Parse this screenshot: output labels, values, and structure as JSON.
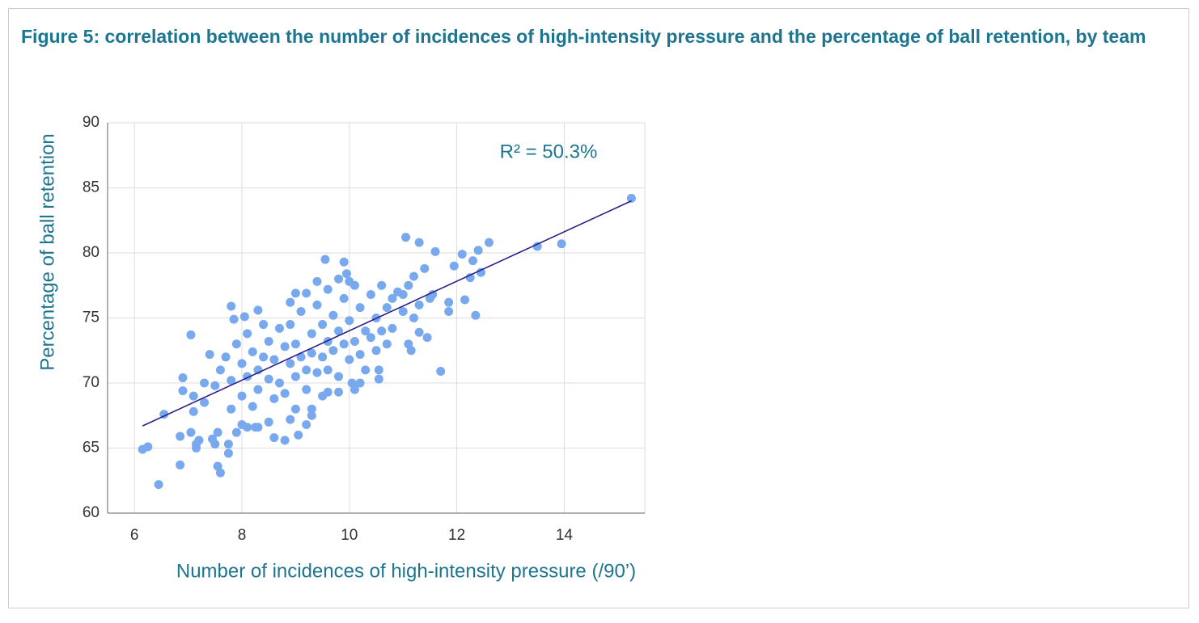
{
  "chart_data": {
    "type": "scatter",
    "title": "Figure 5: correlation between the number of incidences of high-intensity pressure and the percentage of ball retention, by team",
    "xlabel": "Number of incidences of high-intensity pressure (/90’)",
    "ylabel": "Percentage of ball retention",
    "annotation": "R² = 50.3%",
    "color": "#78a9ef",
    "trend_color": "#2b1f8c",
    "grid": true,
    "xlim": [
      5.5,
      15.5
    ],
    "xticks": [
      6,
      8,
      10,
      12,
      14
    ],
    "ylim": [
      60,
      90
    ],
    "yticks": [
      60,
      65,
      70,
      75,
      80,
      85,
      90
    ],
    "trendline": {
      "x": [
        6.15,
        15.25
      ],
      "values": [
        66.7,
        84.0
      ]
    },
    "x": [
      6.15,
      6.25,
      6.45,
      6.55,
      6.85,
      6.85,
      6.9,
      6.9,
      7.05,
      7.05,
      7.1,
      7.15,
      7.15,
      7.2,
      7.1,
      7.3,
      7.4,
      7.45,
      7.5,
      7.55,
      7.6,
      7.55,
      7.75,
      7.75,
      7.8,
      7.85,
      7.9,
      8.0,
      8.05,
      8.1,
      8.25,
      8.3,
      8.3,
      8.5,
      8.6,
      8.8,
      9.05,
      9.2,
      9.0,
      9.2,
      9.55,
      9.9,
      9.95,
      10.1,
      10.05,
      10.55,
      10.55,
      11.05,
      11.3,
      11.6,
      11.7,
      11.95,
      12.1,
      12.15,
      12.35,
      12.3,
      12.4,
      12.6,
      12.45,
      12.25,
      11.85,
      11.85,
      13.5,
      13.95,
      15.25,
      11.55,
      11.3,
      11.45,
      11.15,
      11.1,
      7.3,
      7.5,
      7.6,
      7.7,
      7.8,
      7.8,
      7.9,
      8.0,
      8.0,
      8.1,
      8.1,
      8.2,
      8.2,
      8.3,
      8.3,
      8.4,
      8.4,
      8.5,
      8.5,
      8.6,
      8.6,
      8.7,
      8.7,
      8.8,
      8.8,
      8.9,
      8.9,
      9.0,
      9.0,
      9.0,
      9.1,
      9.1,
      9.2,
      9.2,
      9.3,
      9.3,
      9.4,
      9.4,
      9.5,
      9.5,
      9.5,
      9.6,
      9.6,
      9.7,
      9.7,
      9.8,
      9.8,
      9.9,
      9.9,
      10.0,
      10.0,
      10.1,
      10.1,
      10.2,
      10.2,
      10.3,
      10.3,
      10.4,
      10.4,
      10.5,
      10.5,
      10.6,
      10.6,
      10.7,
      10.7,
      10.8,
      10.8,
      10.9,
      11.0,
      11.0,
      11.1,
      11.2,
      11.2,
      11.3,
      11.4,
      11.5,
      9.4,
      9.6,
      9.8,
      8.9,
      10.0,
      9.3,
      9.3,
      8.9,
      9.6,
      9.8,
      10.2
    ],
    "values": [
      64.9,
      65.1,
      62.2,
      67.6,
      63.7,
      65.9,
      69.4,
      70.4,
      73.7,
      66.2,
      67.8,
      65.0,
      65.3,
      65.6,
      69.0,
      70.0,
      72.2,
      65.7,
      65.3,
      63.6,
      63.1,
      66.2,
      65.3,
      64.6,
      75.9,
      74.9,
      66.2,
      66.8,
      75.1,
      66.6,
      66.6,
      75.6,
      66.6,
      67.0,
      65.8,
      65.6,
      66.0,
      66.8,
      76.9,
      76.9,
      79.5,
      79.3,
      78.4,
      69.5,
      70.0,
      70.3,
      71.0,
      81.2,
      80.8,
      80.1,
      70.9,
      79.0,
      79.9,
      76.4,
      75.2,
      79.4,
      80.2,
      80.8,
      78.5,
      78.1,
      75.5,
      76.2,
      80.5,
      80.7,
      84.2,
      76.8,
      73.9,
      73.5,
      72.5,
      73.0,
      68.5,
      69.8,
      71.0,
      72.0,
      70.2,
      68.0,
      73.0,
      71.5,
      69.0,
      73.8,
      70.5,
      68.2,
      72.4,
      71.0,
      69.5,
      74.5,
      72.0,
      70.3,
      73.2,
      68.8,
      71.8,
      74.2,
      70.0,
      72.8,
      69.2,
      71.5,
      74.5,
      73.0,
      70.5,
      68.0,
      72.0,
      75.5,
      71.0,
      69.5,
      73.8,
      72.3,
      70.8,
      76.0,
      74.5,
      72.0,
      69.0,
      73.2,
      71.0,
      75.2,
      72.5,
      74.0,
      70.5,
      73.0,
      76.5,
      71.8,
      74.8,
      73.2,
      77.5,
      72.2,
      75.8,
      74.0,
      71.0,
      76.8,
      73.5,
      72.5,
      75.0,
      77.5,
      74.0,
      75.8,
      73.0,
      76.5,
      74.2,
      77.0,
      75.5,
      76.8,
      77.5,
      78.2,
      75.0,
      76.0,
      78.8,
      76.5,
      77.8,
      77.2,
      78.0,
      76.2,
      77.8,
      67.5,
      68.0,
      67.2,
      69.3,
      69.3,
      70.0
    ]
  }
}
